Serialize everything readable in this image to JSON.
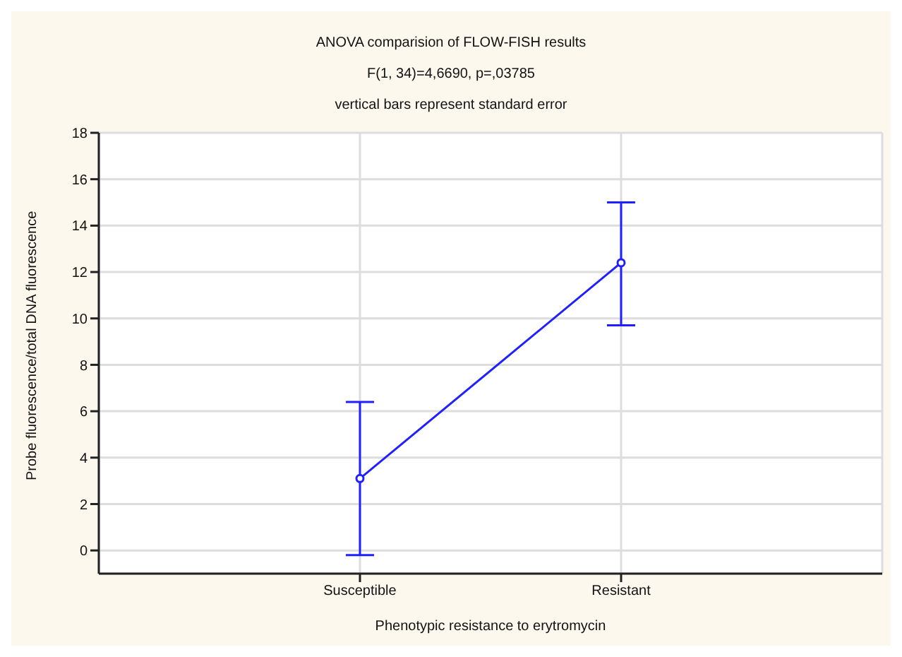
{
  "chart_data": {
    "type": "line",
    "title": "ANOVA comparision of FLOW-FISH results",
    "subtitle": "F(1, 34)=4,6690, p=,03785",
    "annotations": [
      "vertical bars represent standard error"
    ],
    "xlabel": "Phenotypic resistance to erytromycin",
    "ylabel": "Probe fluorescence/total DNA fluorescence",
    "categories": [
      "Susceptible",
      "Resistant"
    ],
    "series": [
      {
        "color": "#2020ff",
        "values": [
          3.1,
          12.4
        ],
        "errors": [
          [
            -0.2,
            6.4
          ],
          [
            9.7,
            15.0
          ]
        ]
      }
    ],
    "ylim": [
      -1,
      18
    ],
    "yticks": [
      0,
      2,
      4,
      6,
      8,
      10,
      12,
      14,
      16,
      18
    ],
    "grid": true,
    "legend": false,
    "marker": "circle",
    "line_style": "solid"
  }
}
